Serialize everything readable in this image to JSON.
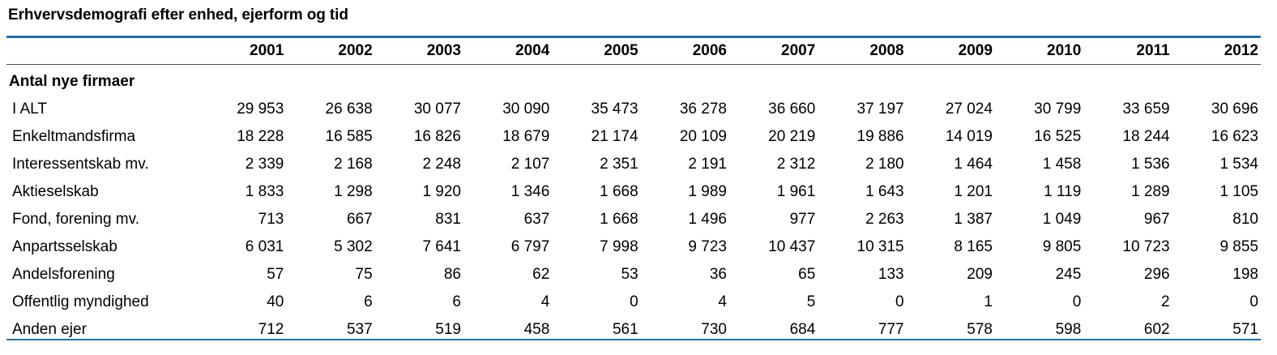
{
  "title": "Erhvervsdemografi efter enhed, ejerform og tid",
  "years": [
    "2001",
    "2002",
    "2003",
    "2004",
    "2005",
    "2006",
    "2007",
    "2008",
    "2009",
    "2010",
    "2011",
    "2012"
  ],
  "section": "Antal nye firmaer",
  "rows": [
    {
      "label": "I ALT",
      "values": [
        "29 953",
        "26 638",
        "30 077",
        "30 090",
        "35 473",
        "36 278",
        "36 660",
        "37 197",
        "27 024",
        "30 799",
        "33 659",
        "30 696"
      ]
    },
    {
      "label": "Enkeltmandsfirma",
      "values": [
        "18 228",
        "16 585",
        "16 826",
        "18 679",
        "21 174",
        "20 109",
        "20 219",
        "19 886",
        "14 019",
        "16 525",
        "18 244",
        "16 623"
      ]
    },
    {
      "label": "Interessentskab mv.",
      "values": [
        "2 339",
        "2 168",
        "2 248",
        "2 107",
        "2 351",
        "2 191",
        "2 312",
        "2 180",
        "1 464",
        "1 458",
        "1 536",
        "1 534"
      ]
    },
    {
      "label": "Aktieselskab",
      "values": [
        "1 833",
        "1 298",
        "1 920",
        "1 346",
        "1 668",
        "1 989",
        "1 961",
        "1 643",
        "1 201",
        "1 119",
        "1 289",
        "1 105"
      ]
    },
    {
      "label": "Fond, forening mv.",
      "values": [
        "713",
        "667",
        "831",
        "637",
        "1 668",
        "1 496",
        "977",
        "2 263",
        "1 387",
        "1 049",
        "967",
        "810"
      ]
    },
    {
      "label": "Anpartsselskab",
      "values": [
        "6 031",
        "5 302",
        "7 641",
        "6 797",
        "7 998",
        "9 723",
        "10 437",
        "10 315",
        "8 165",
        "9 805",
        "10 723",
        "9 855"
      ]
    },
    {
      "label": "Andelsforening",
      "values": [
        "57",
        "75",
        "86",
        "62",
        "53",
        "36",
        "65",
        "133",
        "209",
        "245",
        "296",
        "198"
      ]
    },
    {
      "label": "Offentlig myndighed",
      "values": [
        "40",
        "6",
        "6",
        "4",
        "0",
        "4",
        "5",
        "0",
        "1",
        "0",
        "2",
        "0"
      ]
    },
    {
      "label": "Anden ejer",
      "values": [
        "712",
        "537",
        "519",
        "458",
        "561",
        "730",
        "684",
        "777",
        "578",
        "598",
        "602",
        "571"
      ]
    }
  ],
  "colors": {
    "accent_rule": "#1f6fa6",
    "header_rule": "#4a4a4a"
  }
}
